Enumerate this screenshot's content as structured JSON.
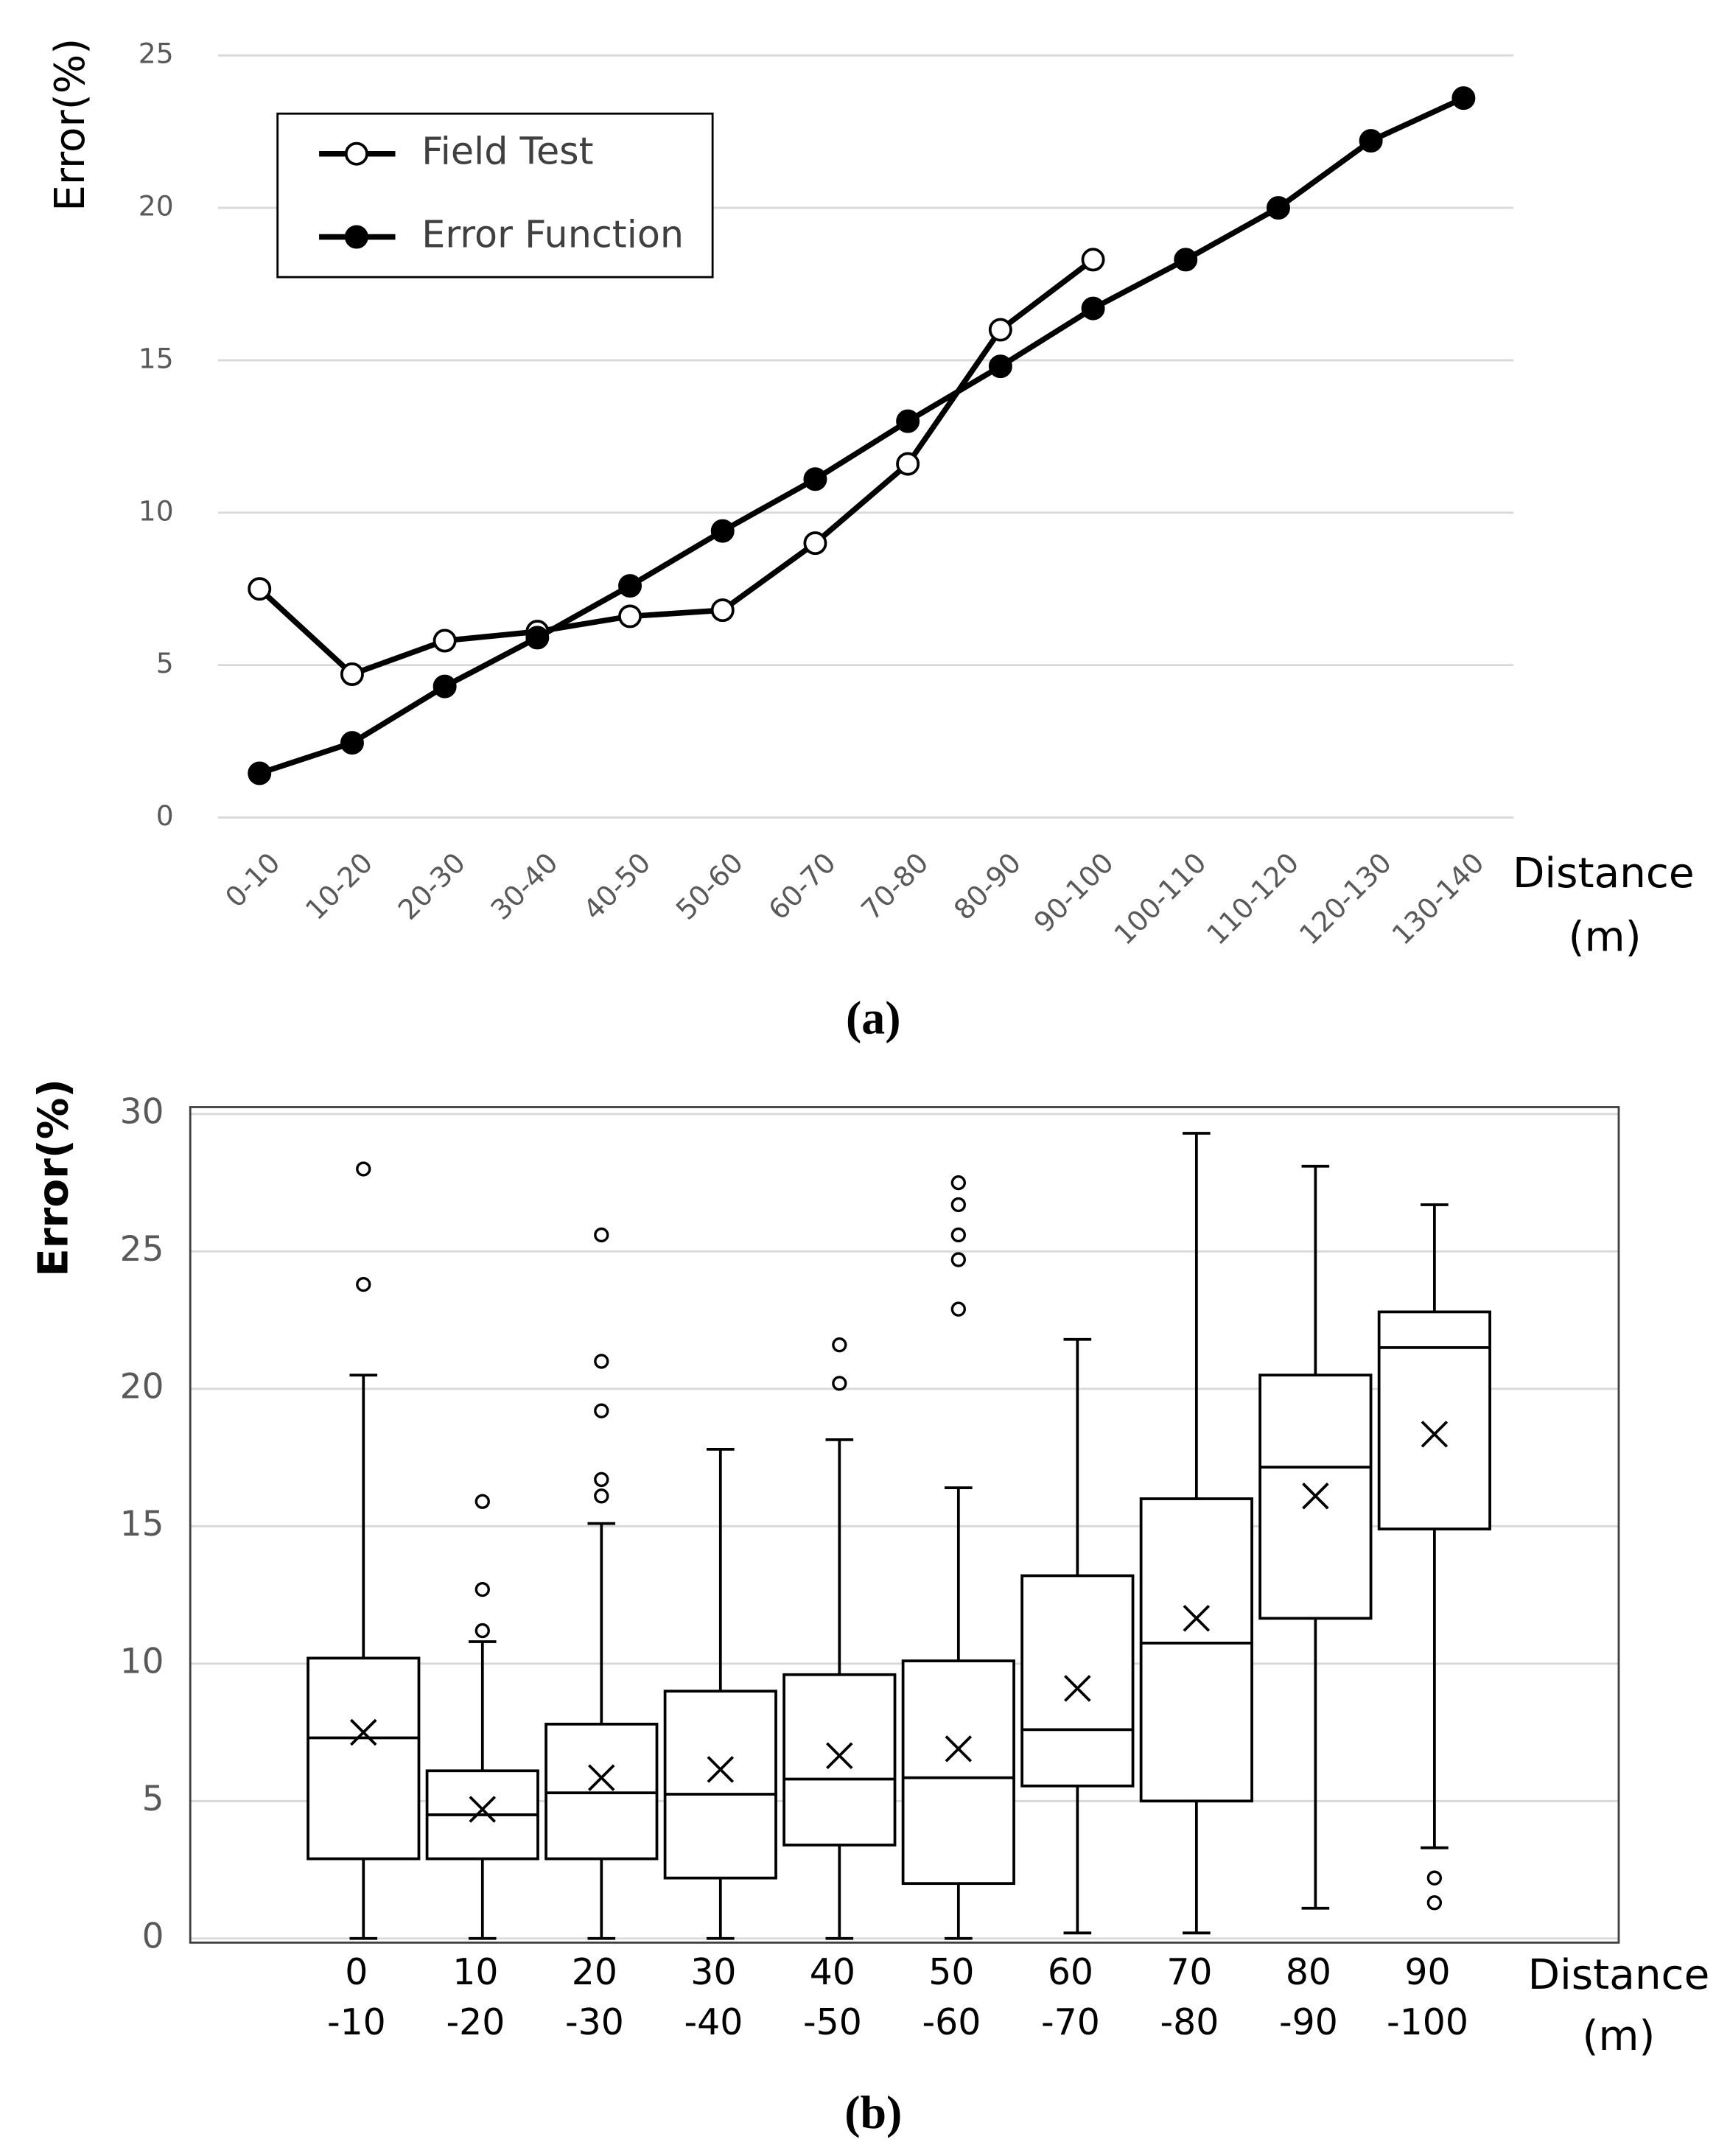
{
  "chart_data": [
    {
      "type": "line",
      "ylabel": "Error(%)",
      "xlabel": [
        "Distance",
        "(m)"
      ],
      "caption": "(a)",
      "categories": [
        "0-10",
        "10-20",
        "20-30",
        "30-40",
        "40-50",
        "50-60",
        "60-70",
        "70-80",
        "80-90",
        "90-100",
        "100-110",
        "110-120",
        "120-130",
        "130-140"
      ],
      "series": [
        {
          "name": "Field Test",
          "color": "#000000",
          "marker": "open",
          "values": [
            7.5,
            4.7,
            5.8,
            6.1,
            6.6,
            6.8,
            9.0,
            11.6,
            16.0,
            18.3,
            null,
            null,
            null,
            null
          ]
        },
        {
          "name": "Error Function",
          "color": "#000000",
          "marker": "filled",
          "values": [
            1.45,
            2.45,
            4.3,
            5.9,
            7.6,
            9.4,
            11.1,
            13.0,
            14.8,
            16.7,
            18.3,
            20.0,
            22.2,
            23.6
          ]
        }
      ],
      "ylim": [
        0,
        25
      ],
      "yticks": [
        0,
        5,
        10,
        15,
        20,
        25
      ],
      "grid": true,
      "legend": "upper left"
    },
    {
      "type": "box",
      "ylabel": "Error(%)",
      "xlabel": [
        "Distance",
        "(m)"
      ],
      "caption": "(b)",
      "categories": [
        [
          "0",
          "-10"
        ],
        [
          "10",
          "-20"
        ],
        [
          "20",
          "-30"
        ],
        [
          "30",
          "-40"
        ],
        [
          "40",
          "-50"
        ],
        [
          "50",
          "-60"
        ],
        [
          "60",
          "-70"
        ],
        [
          "70",
          "-80"
        ],
        [
          "80",
          "-90"
        ],
        [
          "90",
          "-100"
        ]
      ],
      "color": "#000000",
      "min": [
        0,
        0,
        0,
        0,
        0,
        0,
        0.2,
        0.2,
        1.1,
        3.3
      ],
      "q1": [
        2.9,
        2.9,
        2.9,
        2.2,
        3.4,
        2.0,
        5.55,
        5.0,
        11.65,
        14.9
      ],
      "median": [
        7.3,
        4.5,
        5.3,
        5.25,
        5.8,
        5.85,
        7.6,
        10.75,
        17.15,
        21.5
      ],
      "q3": [
        10.2,
        6.1,
        7.8,
        9.0,
        9.6,
        10.1,
        13.2,
        16.0,
        20.5,
        22.8
      ],
      "max": [
        20.5,
        10.8,
        15.1,
        17.8,
        18.15,
        16.4,
        21.8,
        29.3,
        28.1,
        26.7
      ],
      "mean": [
        7.5,
        4.7,
        5.85,
        6.15,
        6.65,
        6.9,
        9.1,
        11.65,
        16.1,
        18.35
      ],
      "outliers": [
        [
          23.8,
          28.0
        ],
        [
          11.2,
          12.7,
          15.9
        ],
        [
          16.1,
          16.7,
          19.2,
          21.0,
          25.6
        ],
        [],
        [
          20.2,
          21.6
        ],
        [
          22.9,
          24.7,
          25.6,
          26.7,
          27.5
        ],
        [],
        [],
        [],
        [
          2.2,
          1.3
        ]
      ],
      "ylim": [
        0,
        30
      ],
      "yticks": [
        0,
        5,
        10,
        15,
        20,
        25,
        30
      ],
      "grid": true
    }
  ]
}
